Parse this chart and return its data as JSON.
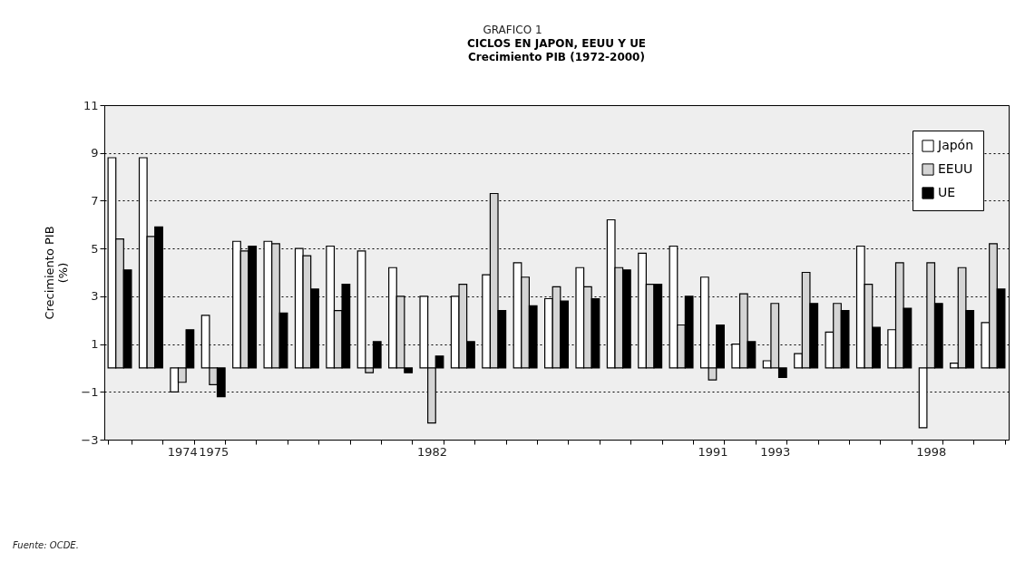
{
  "chart_data": {
    "type": "bar",
    "title": "CICLOS EN JAPON, EEUU Y UE",
    "subtitle": "Crecimiento PIB (1972-2000)",
    "ylabel": "Crecimiento PIB (%)",
    "annotations": [
      "GRAFICO 1",
      "Fuente: OCDE."
    ],
    "categories": [
      null,
      null,
      "1974",
      "1975",
      null,
      null,
      null,
      null,
      null,
      null,
      "1982",
      null,
      null,
      null,
      null,
      null,
      null,
      null,
      null,
      "1991",
      null,
      "1993",
      null,
      null,
      null,
      null,
      "1998",
      null,
      null
    ],
    "series": [
      {
        "name": "Japón",
        "color": "#ffffff",
        "values": [
          8.8,
          8.8,
          -1.0,
          2.2,
          5.3,
          5.3,
          5.0,
          5.1,
          4.9,
          4.2,
          3.0,
          3.0,
          3.9,
          4.4,
          2.9,
          4.2,
          6.2,
          4.8,
          5.1,
          3.8,
          1.0,
          0.3,
          0.6,
          1.5,
          5.1,
          1.6,
          -2.5,
          0.2,
          1.9
        ]
      },
      {
        "name": "EEUU",
        "color": "#d4d4d4",
        "values": [
          5.4,
          5.5,
          -0.6,
          -0.7,
          4.9,
          5.2,
          4.7,
          2.4,
          -0.2,
          3.0,
          -2.3,
          3.5,
          7.3,
          3.8,
          3.4,
          3.4,
          4.2,
          3.5,
          1.8,
          -0.5,
          3.1,
          2.7,
          4.0,
          2.7,
          3.5,
          4.4,
          4.4,
          4.2,
          5.2
        ]
      },
      {
        "name": "UE",
        "color": "#000000",
        "values": [
          4.1,
          5.9,
          1.6,
          -1.2,
          5.1,
          2.3,
          3.3,
          3.5,
          1.1,
          -0.2,
          0.5,
          1.1,
          2.4,
          2.6,
          2.8,
          2.9,
          4.1,
          3.5,
          3.0,
          1.8,
          1.1,
          -0.4,
          2.7,
          2.4,
          1.7,
          2.5,
          2.7,
          2.4,
          3.3
        ]
      }
    ],
    "ylim": [
      -3,
      11
    ],
    "yticks": [
      -3,
      -1,
      1,
      3,
      5,
      7,
      9,
      11
    ],
    "grid": "y",
    "legend": "top right"
  }
}
